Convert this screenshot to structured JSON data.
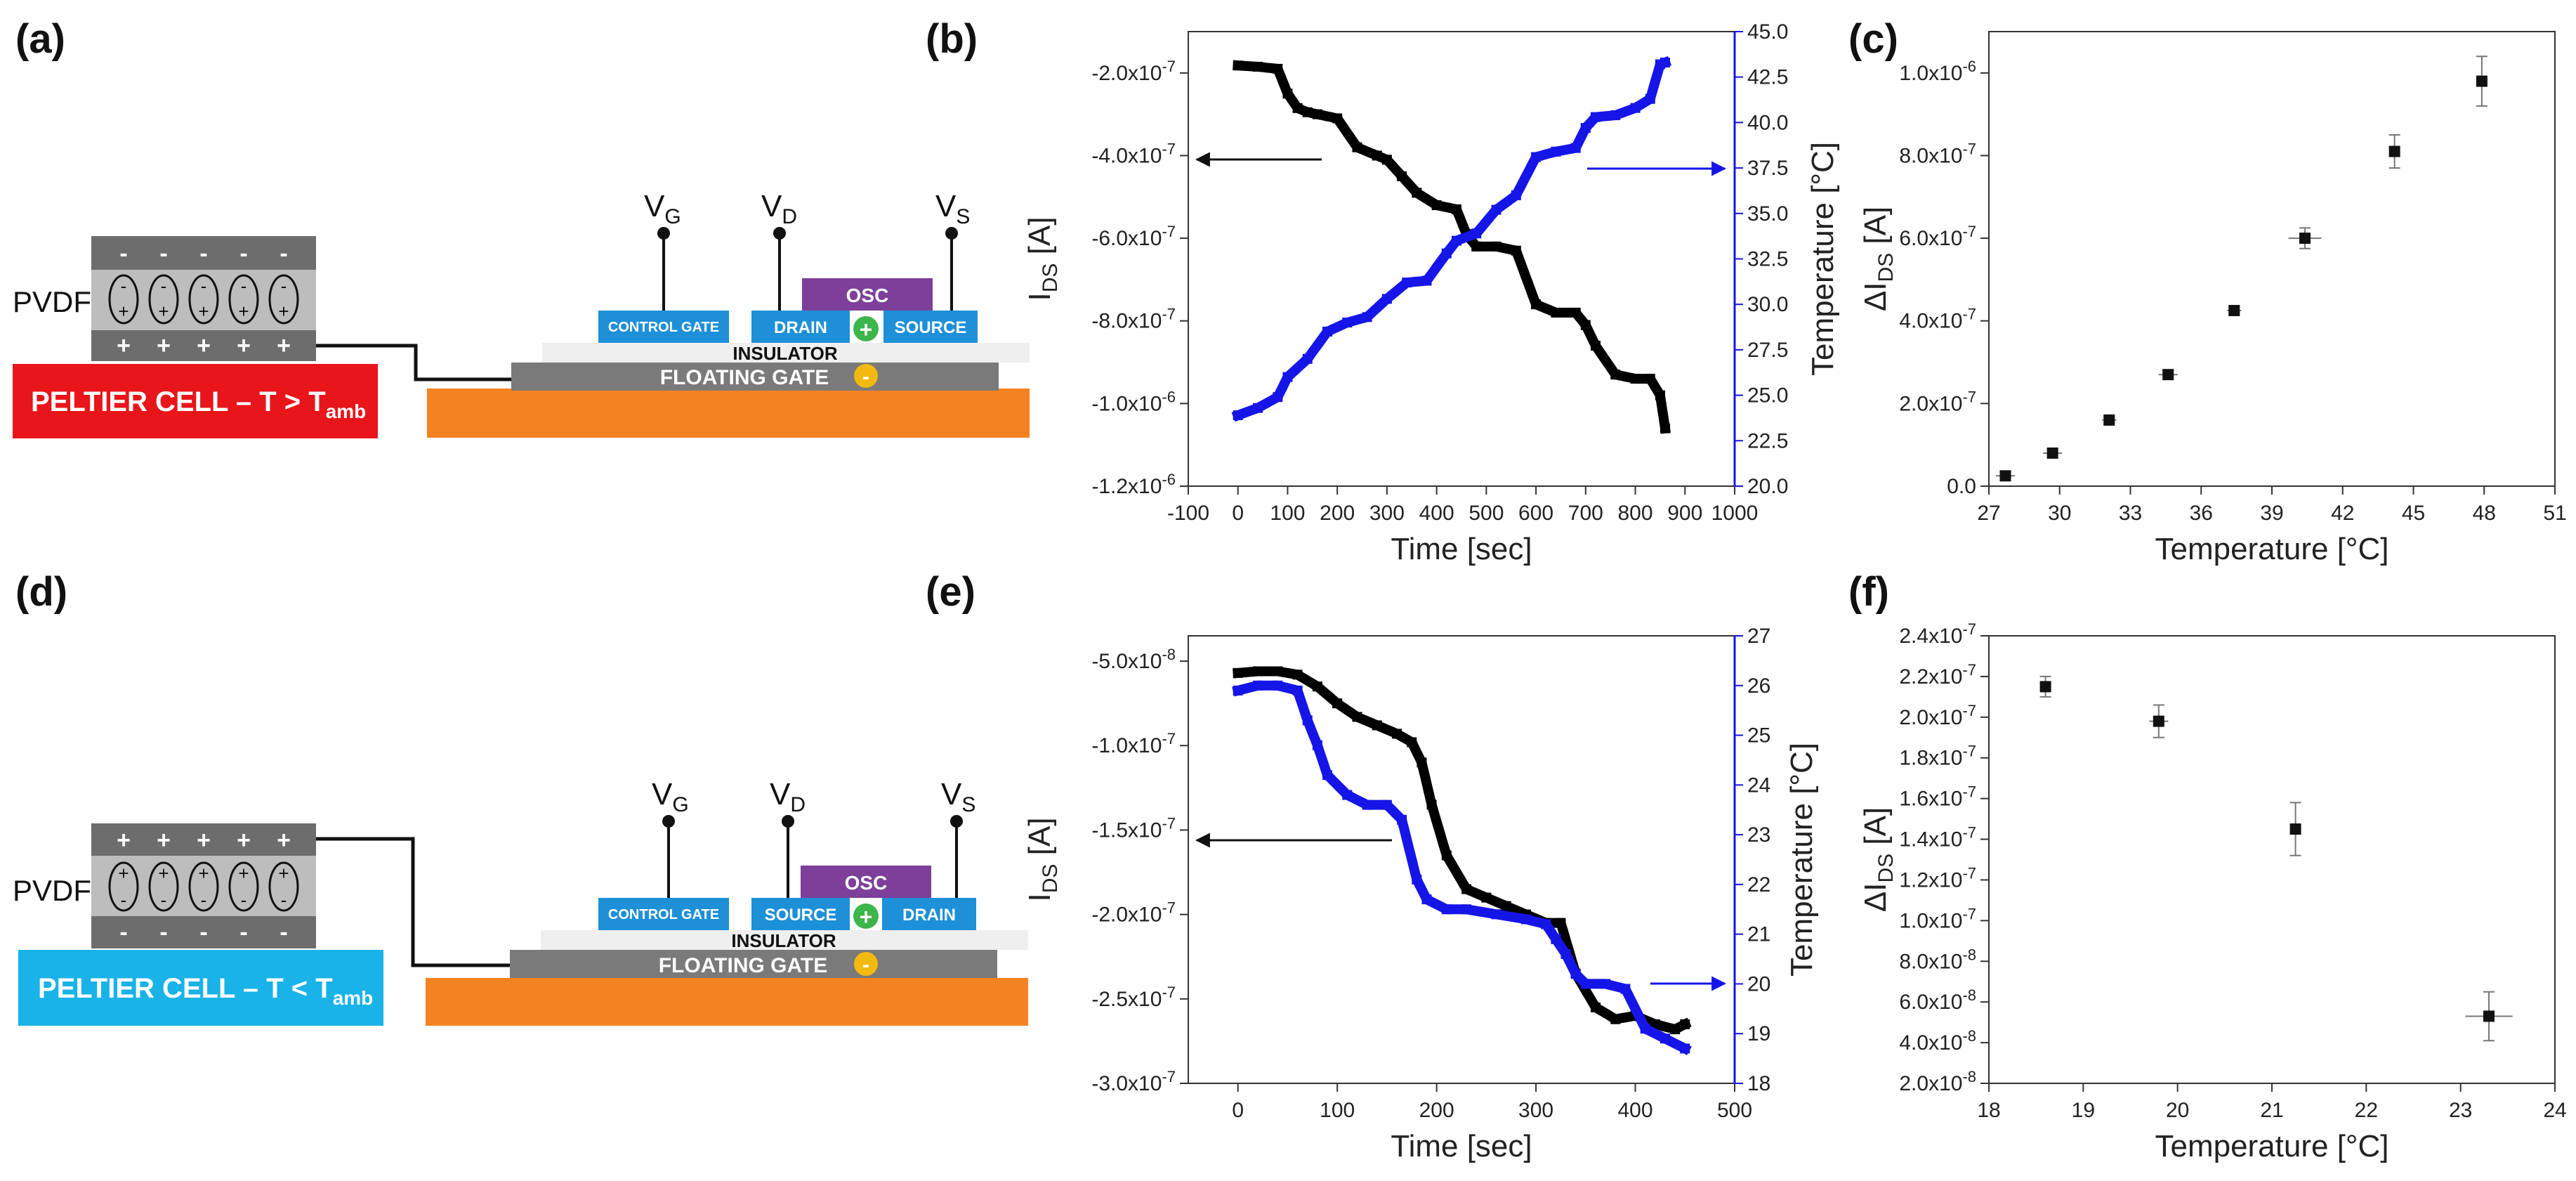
{
  "panel_labels": {
    "a": "(a)",
    "b": "(b)",
    "c": "(c)",
    "d": "(d)",
    "e": "(e)",
    "f": "(f)"
  },
  "schematic_top": {
    "pvdf": "PVDF",
    "peltier_main": "PELTIER CELL – T > T",
    "peltier_sub": "amb",
    "control_gate": "CONTROL GATE",
    "drain": "DRAIN",
    "source": "SOURCE",
    "osc": "OSC",
    "insulator": "INSULATOR",
    "floating_gate": "FLOATING GATE",
    "vg": "V",
    "vg_sub": "G",
    "vd": "V",
    "vd_sub": "D",
    "vs": "V",
    "vs_sub": "S",
    "colors": {
      "peltier": "#e8151b",
      "electrode": "#1e90d8",
      "osc": "#7d3f9a",
      "substrate": "#f58220",
      "gate": "#7a7a7a"
    }
  },
  "schematic_bottom": {
    "pvdf": "PVDF",
    "peltier_main": "PELTIER CELL – T < T",
    "peltier_sub": "amb",
    "control_gate": "CONTROL GATE",
    "drain": "DRAIN",
    "source": "SOURCE",
    "osc": "OSC",
    "insulator": "INSULATOR",
    "floating_gate": "FLOATING GATE",
    "vg": "V",
    "vg_sub": "G",
    "vd": "V",
    "vd_sub": "D",
    "vs": "V",
    "vs_sub": "S",
    "colors": {
      "peltier": "#19b3e8"
    }
  },
  "chart_data": [
    {
      "id": "b",
      "type": "line",
      "xlabel": "Time [sec]",
      "ylabel": "I",
      "ylabel_sub": "DS",
      "ylabel_unit": " [A]",
      "y2label": "Temperature [°C]",
      "xlim": [
        -100,
        1000
      ],
      "ylim": [
        -1.2e-06,
        -1e-07
      ],
      "y2lim": [
        20,
        45
      ],
      "x_ticks": [
        "-100",
        "0",
        "100",
        "200",
        "300",
        "400",
        "500",
        "600",
        "700",
        "800",
        "900",
        "1000"
      ],
      "y_ticks": [
        "-1.2x10-6",
        "-1.0x10-6",
        "-8.0x10-7",
        "-6.0x10-7",
        "-4.0x10-7",
        "-2.0x10-7"
      ],
      "y2_ticks": [
        "20.0",
        "22.5",
        "25.0",
        "27.5",
        "30.0",
        "32.5",
        "35.0",
        "37.5",
        "40.0",
        "42.5",
        "45.0"
      ],
      "series": [
        {
          "name": "I_DS",
          "axis": "left",
          "color": "#000000",
          "x": [
            0,
            40,
            80,
            100,
            120,
            140,
            160,
            200,
            240,
            280,
            300,
            330,
            360,
            400,
            440,
            460,
            480,
            520,
            560,
            600,
            640,
            680,
            700,
            720,
            760,
            800,
            830,
            850,
            860
          ],
          "y": [
            -1.82e-07,
            -1.85e-07,
            -1.9e-07,
            -2.5e-07,
            -2.85e-07,
            -2.95e-07,
            -3e-07,
            -3.1e-07,
            -3.8e-07,
            -4e-07,
            -4.1e-07,
            -4.5e-07,
            -4.9e-07,
            -5.2e-07,
            -5.3e-07,
            -5.9e-07,
            -6.2e-07,
            -6.2e-07,
            -6.3e-07,
            -7.6e-07,
            -7.8e-07,
            -7.8e-07,
            -8.1e-07,
            -8.6e-07,
            -9.3e-07,
            -9.4e-07,
            -9.4e-07,
            -9.8e-07,
            -1.06e-06
          ]
        },
        {
          "name": "Temperature",
          "axis": "right",
          "color": "#1515e8",
          "x": [
            0,
            40,
            80,
            100,
            140,
            180,
            220,
            260,
            300,
            340,
            380,
            420,
            440,
            480,
            520,
            560,
            600,
            640,
            680,
            700,
            720,
            760,
            800,
            830,
            850,
            860
          ],
          "y": [
            23.9,
            24.3,
            24.9,
            26.0,
            27.0,
            28.5,
            29.0,
            29.3,
            30.3,
            31.2,
            31.3,
            32.8,
            33.5,
            33.9,
            35.2,
            36.0,
            38.1,
            38.4,
            38.6,
            39.7,
            40.3,
            40.4,
            40.8,
            41.3,
            43.2,
            43.3
          ]
        }
      ],
      "annotations": [
        "arrow-left-to-IDS-axis",
        "arrow-right-to-temperature-axis"
      ]
    },
    {
      "id": "c",
      "type": "scatter",
      "xlabel": "Temperature [°C]",
      "ylabel": "ΔI",
      "ylabel_sub": "DS",
      "ylabel_unit": " [A]",
      "xlim": [
        27,
        51
      ],
      "ylim": [
        0,
        1.1e-06
      ],
      "x_ticks": [
        "27",
        "30",
        "33",
        "36",
        "39",
        "42",
        "45",
        "48",
        "51"
      ],
      "y_ticks": [
        "0.0",
        "2.0x10-7",
        "4.0x10-7",
        "6.0x10-7",
        "8.0x10-7",
        "1.0x10-6"
      ],
      "points": [
        {
          "x": 27.7,
          "y": 2.5e-08,
          "xerr": 0.4,
          "yerr": 1e-08
        },
        {
          "x": 29.7,
          "y": 8e-08,
          "xerr": 0.4,
          "yerr": 1e-08
        },
        {
          "x": 32.1,
          "y": 1.6e-07,
          "xerr": 0.3,
          "yerr": 1e-08
        },
        {
          "x": 34.6,
          "y": 2.7e-07,
          "xerr": 0.4,
          "yerr": 1e-08
        },
        {
          "x": 37.4,
          "y": 4.25e-07,
          "xerr": 0.3,
          "yerr": 1e-08
        },
        {
          "x": 40.4,
          "y": 6e-07,
          "xerr": 0.7,
          "yerr": 2.5e-08
        },
        {
          "x": 44.2,
          "y": 8.1e-07,
          "xerr": 0.2,
          "yerr": 4e-08
        },
        {
          "x": 47.9,
          "y": 9.8e-07,
          "xerr": 0.2,
          "yerr": 6e-08
        }
      ]
    },
    {
      "id": "e",
      "type": "line",
      "xlabel": "Time [sec]",
      "ylabel": "I",
      "ylabel_sub": "DS",
      "ylabel_unit": " [A]",
      "y2label": "Temperature [°C]",
      "xlim": [
        -50,
        500
      ],
      "ylim": [
        -3e-07,
        -3.5e-08
      ],
      "y2lim": [
        18,
        27
      ],
      "x_ticks": [
        "0",
        "100",
        "200",
        "300",
        "400",
        "500"
      ],
      "y_ticks": [
        "-3.0x10-7",
        "-2.5x10-7",
        "-2.0x10-7",
        "-1.5x10-7",
        "-1.0x10-7",
        "-5.0x10-8"
      ],
      "y2_ticks": [
        "18",
        "19",
        "20",
        "21",
        "22",
        "23",
        "24",
        "25",
        "26",
        "27"
      ],
      "series": [
        {
          "name": "I_DS",
          "axis": "left",
          "color": "#000000",
          "x": [
            0,
            20,
            40,
            60,
            80,
            100,
            120,
            140,
            160,
            175,
            185,
            195,
            210,
            230,
            250,
            270,
            290,
            310,
            325,
            340,
            360,
            380,
            400,
            420,
            440,
            450
          ],
          "y": [
            -5.7e-08,
            -5.6e-08,
            -5.6e-08,
            -5.8e-08,
            -6.5e-08,
            -7.5e-08,
            -8.3e-08,
            -8.8e-08,
            -9.3e-08,
            -9.8e-08,
            -1.1e-07,
            -1.35e-07,
            -1.65e-07,
            -1.85e-07,
            -1.9e-07,
            -1.95e-07,
            -2e-07,
            -2.05e-07,
            -2.05e-07,
            -2.35e-07,
            -2.55e-07,
            -2.62e-07,
            -2.6e-07,
            -2.65e-07,
            -2.68e-07,
            -2.65e-07
          ]
        },
        {
          "name": "Temperature",
          "axis": "right",
          "color": "#1515e8",
          "x": [
            0,
            20,
            40,
            60,
            70,
            80,
            90,
            110,
            130,
            150,
            165,
            180,
            190,
            210,
            230,
            260,
            290,
            310,
            320,
            330,
            340,
            350,
            370,
            390,
            410,
            430,
            450
          ],
          "y": [
            25.9,
            26.0,
            26.0,
            25.9,
            25.3,
            24.8,
            24.2,
            23.8,
            23.6,
            23.6,
            23.3,
            22.1,
            21.7,
            21.5,
            21.5,
            21.4,
            21.3,
            21.2,
            20.9,
            20.6,
            20.2,
            20.0,
            20.0,
            19.9,
            19.1,
            18.9,
            18.7
          ]
        }
      ],
      "annotations": [
        "arrow-left-to-IDS-axis",
        "arrow-right-to-temperature-axis"
      ]
    },
    {
      "id": "f",
      "type": "scatter",
      "xlabel": "Temperature [°C]",
      "ylabel": "ΔI",
      "ylabel_sub": "DS",
      "ylabel_unit": " [A]",
      "xlim": [
        18,
        24
      ],
      "ylim": [
        2e-08,
        2.4e-07
      ],
      "x_ticks": [
        "18",
        "19",
        "20",
        "21",
        "22",
        "23",
        "24"
      ],
      "y_ticks": [
        "2.0x10-8",
        "4.0x10-8",
        "6.0x10-8",
        "8.0x10-8",
        "1.0x10-7",
        "1.2x10-7",
        "1.4x10-7",
        "1.6x10-7",
        "1.8x10-7",
        "2.0x10-7",
        "2.2x10-7",
        "2.4x10-7"
      ],
      "points": [
        {
          "x": 18.6,
          "y": 2.15e-07,
          "xerr": 0.05,
          "yerr": 5e-09
        },
        {
          "x": 19.8,
          "y": 1.98e-07,
          "xerr": 0.1,
          "yerr": 8e-09
        },
        {
          "x": 21.25,
          "y": 1.45e-07,
          "xerr": 0.02,
          "yerr": 1.3e-08
        },
        {
          "x": 23.3,
          "y": 5.3e-08,
          "xerr": 0.25,
          "yerr": 1.2e-08
        }
      ]
    }
  ]
}
